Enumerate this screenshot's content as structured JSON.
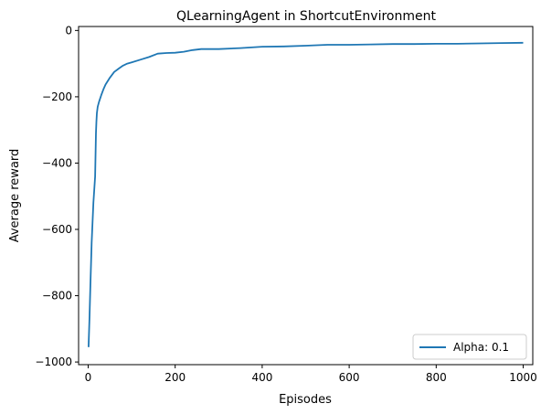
{
  "chart_data": {
    "type": "line",
    "title": "QLearningAgent in ShortcutEnvironment",
    "xlabel": "Episodes",
    "ylabel": "Average reward",
    "xlim": [
      -22,
      1022
    ],
    "ylim": [
      -1008,
      12
    ],
    "xticks": [
      0,
      200,
      400,
      600,
      800,
      1000
    ],
    "yticks": [
      0,
      -200,
      -400,
      -600,
      -800,
      -1000
    ],
    "xtick_labels": [
      "0",
      "200",
      "400",
      "600",
      "800",
      "1000"
    ],
    "ytick_labels": [
      "0",
      "−200",
      "−400",
      "−600",
      "−800",
      "−1000"
    ],
    "grid": false,
    "legend_position": "lower-right",
    "series": [
      {
        "name": "Alpha: 0.1",
        "color": "#1f77b4",
        "x": [
          1,
          3,
          5,
          8,
          12,
          16,
          18,
          19,
          20,
          22,
          25,
          30,
          35,
          40,
          50,
          60,
          70,
          80,
          90,
          100,
          120,
          140,
          160,
          180,
          200,
          220,
          240,
          260,
          300,
          350,
          400,
          450,
          500,
          550,
          600,
          650,
          700,
          750,
          800,
          850,
          900,
          950,
          1000
        ],
        "y": [
          -955,
          -870,
          -770,
          -640,
          -520,
          -440,
          -310,
          -275,
          -250,
          -230,
          -215,
          -195,
          -178,
          -163,
          -142,
          -125,
          -115,
          -106,
          -100,
          -96,
          -88,
          -80,
          -70,
          -68,
          -67,
          -64,
          -59,
          -56,
          -56,
          -53,
          -49,
          -48,
          -46,
          -43,
          -43,
          -42,
          -41,
          -41,
          -40,
          -40,
          -39,
          -38,
          -37
        ]
      }
    ],
    "legend_entries": [
      "Alpha: 0.1"
    ]
  }
}
